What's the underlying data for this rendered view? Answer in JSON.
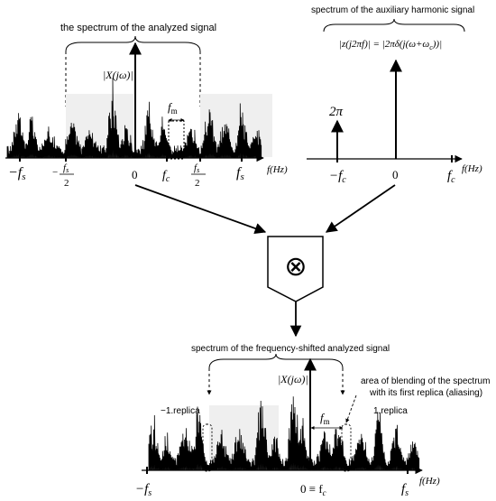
{
  "panel_top_left": {
    "title": "the spectrum of the analyzed signal",
    "magnitude_label": "|X(jω)|",
    "fm_label": "f",
    "fm_sub": "m",
    "axis_unit": "f(Hz)",
    "tick_neg_fs": "−f",
    "tick_neg_fs_sub": "s",
    "tick_neg_half_num": "f",
    "tick_neg_half_num_sub": "s",
    "tick_neg_half_sign": "−",
    "tick_half_den": "2",
    "tick_zero": "0",
    "tick_fc": "f",
    "tick_fc_sub": "c",
    "tick_pos_half_num": "f",
    "tick_pos_half_num_sub": "s",
    "tick_fs": "f",
    "tick_fs_sub": "s"
  },
  "panel_top_right": {
    "title": "spectrum of the auxiliary harmonic signal",
    "formula": "|z(j2πf)| = |2πδ(j(ω+ω",
    "formula_sub": "c",
    "formula_end": "))|",
    "impulse_label": "2π",
    "axis_unit": "f(Hz)",
    "tick_neg_fc": "−f",
    "tick_neg_fc_sub": "c",
    "tick_zero": "0",
    "tick_fc": "f",
    "tick_fc_sub": "c"
  },
  "mixer": {
    "symbol": "⊗"
  },
  "panel_bottom": {
    "title": "spectrum of the frequency-shifted analyzed signal",
    "magnitude_label": "|X(jω)|",
    "aliasing_note_line1": "area of blending of the spectrum",
    "aliasing_note_line2": "with its first replica (aliasing)",
    "replica_left": "−1.replica",
    "replica_right": "1.replica",
    "fm_label": "f",
    "fm_sub": "m",
    "axis_unit": "f(Hz)",
    "tick_neg_fs": "−f",
    "tick_neg_fs_sub": "s",
    "tick_zero": "0 ≡ f",
    "tick_zero_sub": "c",
    "tick_fs": "f",
    "tick_fs_sub": "s"
  }
}
